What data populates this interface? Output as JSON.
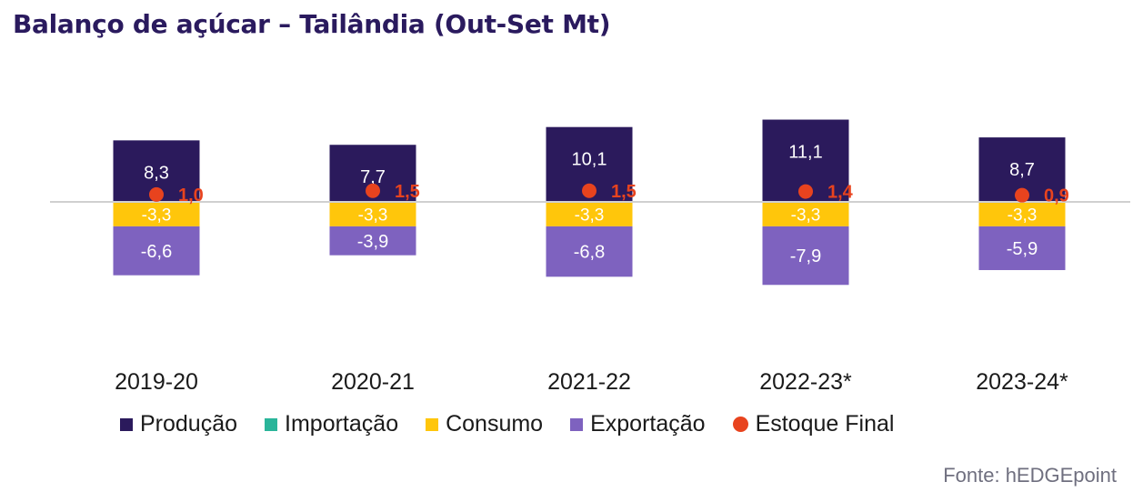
{
  "title": "Balanço de açúcar – Tailândia (Out-Set Mt)",
  "source": "Fonte: hEDGEpoint",
  "colors": {
    "producao": "#2b1a5c",
    "importacao": "#2ab59a",
    "consumo": "#ffc60b",
    "exportacao": "#7e62bf",
    "estoque": "#e8431e",
    "axis": "#d0d0d0"
  },
  "legend": [
    {
      "key": "producao",
      "label": "Produção"
    },
    {
      "key": "importacao",
      "label": "Importação"
    },
    {
      "key": "consumo",
      "label": "Consumo"
    },
    {
      "key": "exportacao",
      "label": "Exportação"
    },
    {
      "key": "estoque",
      "label": "Estoque Final"
    }
  ],
  "chart_data": {
    "type": "bar",
    "stacked": true,
    "categories": [
      "2019-20",
      "2020-21",
      "2021-22",
      "2022-23*",
      "2023-24*"
    ],
    "series": [
      {
        "name": "Produção",
        "key": "producao",
        "values": [
          8.3,
          7.7,
          10.1,
          11.1,
          8.7
        ],
        "labels": [
          "8,3",
          "7,7",
          "10,1",
          "11,1",
          "8,7"
        ]
      },
      {
        "name": "Importação",
        "key": "importacao",
        "values": [
          0,
          0,
          0,
          0,
          0
        ]
      },
      {
        "name": "Consumo",
        "key": "consumo",
        "values": [
          -3.3,
          -3.3,
          -3.3,
          -3.3,
          -3.3
        ],
        "labels": [
          "-3,3",
          "-3,3",
          "-3,3",
          "-3,3",
          "-3,3"
        ]
      },
      {
        "name": "Exportação",
        "key": "exportacao",
        "values": [
          -6.6,
          -3.9,
          -6.8,
          -7.9,
          -5.9
        ],
        "labels": [
          "-6,6",
          "-3,9",
          "-6,8",
          "-7,9",
          "-5,9"
        ]
      },
      {
        "name": "Estoque Final",
        "key": "estoque",
        "type": "scatter",
        "values": [
          1.0,
          1.5,
          1.5,
          1.4,
          0.9
        ],
        "labels": [
          "1,0",
          "1,5",
          "1,5",
          "1,4",
          "0,9"
        ]
      }
    ]
  }
}
